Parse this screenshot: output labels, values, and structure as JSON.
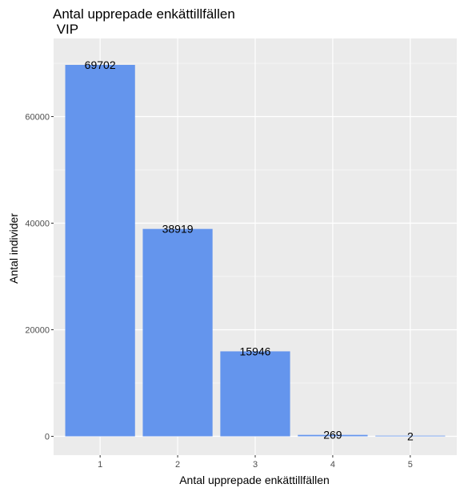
{
  "chart_data": {
    "type": "bar",
    "title": "Antal upprepade enkättillfällen\n VIP",
    "xlabel": "Antal upprepade enkättillfällen",
    "ylabel": "Antal individer",
    "categories": [
      "1",
      "2",
      "3",
      "4",
      "5"
    ],
    "values": [
      69702,
      38919,
      15946,
      269,
      2
    ],
    "data_labels": [
      "69702",
      "38919",
      "15946",
      "269",
      "2"
    ],
    "ylim": [
      0,
      74000
    ],
    "yticks": [
      0,
      20000,
      40000,
      60000
    ],
    "ytick_labels": [
      "0",
      "20000",
      "40000",
      "60000"
    ],
    "grid": true,
    "legend": "none",
    "colors": {
      "bar": "#6495ED",
      "panel_background": "#EBEBEB",
      "grid": "#FFFFFF",
      "axis_text": "#4D4D4D"
    }
  }
}
